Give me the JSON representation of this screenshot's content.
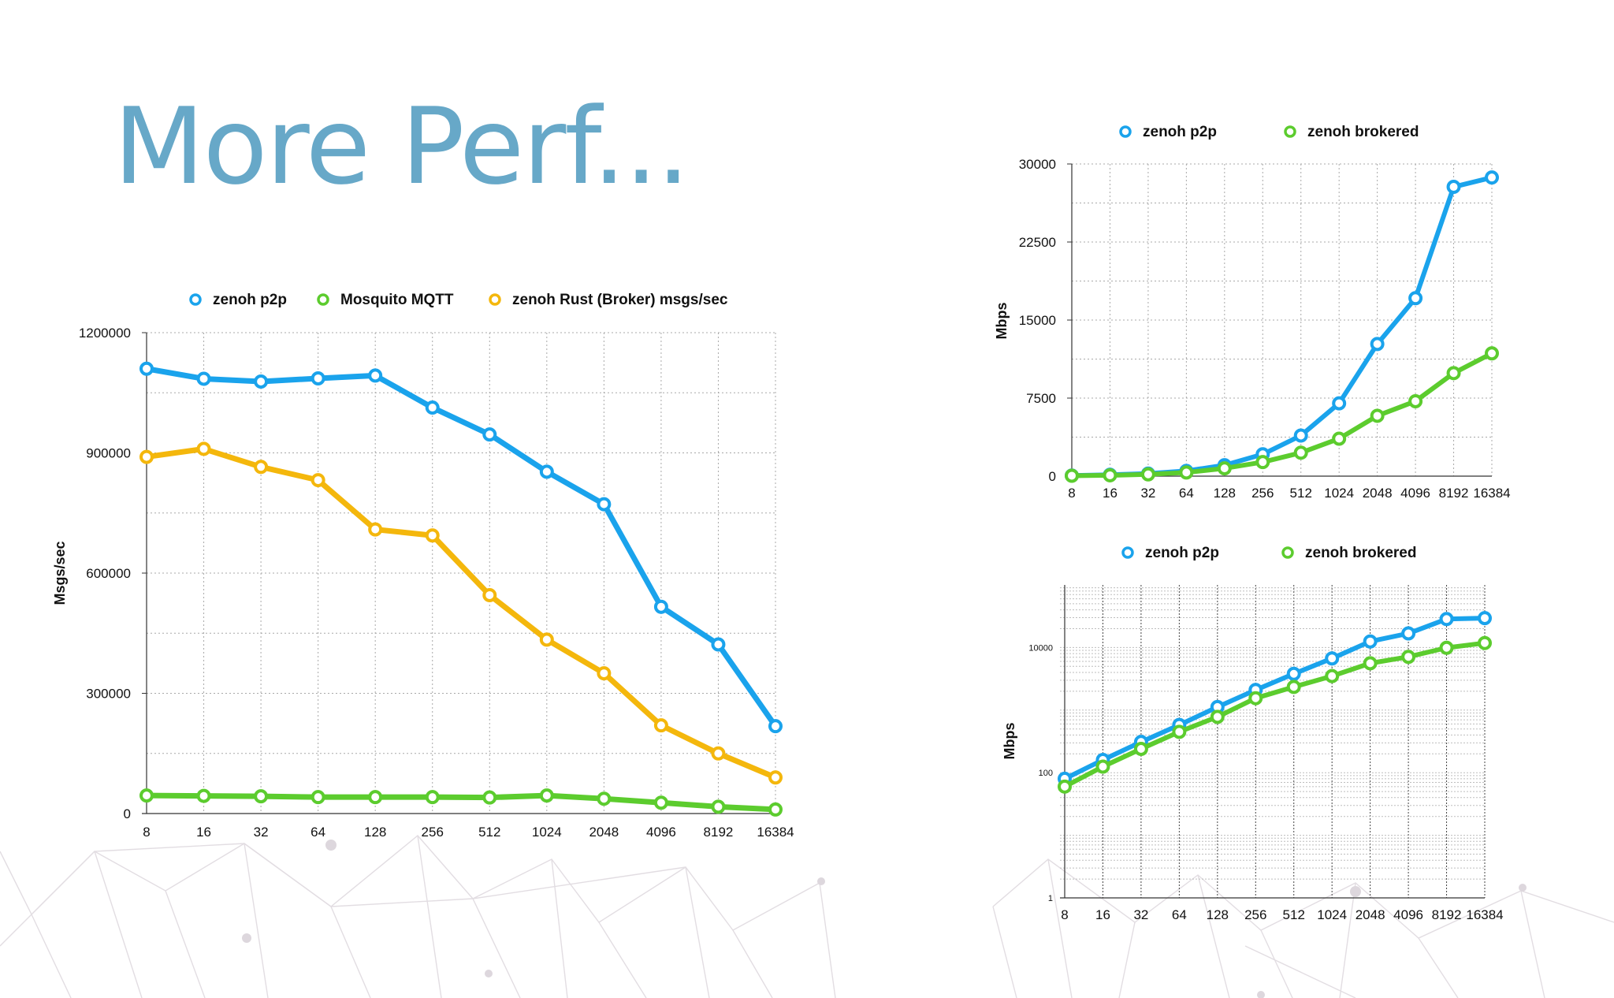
{
  "slide": {
    "title": "More Perf..."
  },
  "colors": {
    "blue": "#1aa3ec",
    "green": "#5ccc2e",
    "orange": "#f4b70c",
    "title": "#67a8c8",
    "grid": "#9a9a9a"
  },
  "chart_data": [
    {
      "type": "line",
      "categories": [
        "8",
        "16",
        "32",
        "64",
        "128",
        "256",
        "512",
        "1024",
        "2048",
        "4096",
        "8192",
        "16384"
      ],
      "series": [
        {
          "name": "zenoh p2p",
          "color": "#1aa3ec",
          "values": [
            1110000,
            1085000,
            1078000,
            1086000,
            1093000,
            1013000,
            946000,
            853000,
            772000,
            516000,
            422000,
            218000
          ]
        },
        {
          "name": "Mosquito MQTT",
          "color": "#5ccc2e",
          "values": [
            45000,
            44000,
            43000,
            41000,
            41000,
            41000,
            40000,
            45000,
            37000,
            27000,
            17000,
            10000
          ]
        },
        {
          "name": "zenoh Rust (Broker) msgs/sec",
          "color": "#f4b70c",
          "values": [
            890000,
            910000,
            865000,
            832000,
            709000,
            694000,
            545000,
            434000,
            350000,
            220000,
            150000,
            90000
          ]
        }
      ],
      "ylabel": "Msgs/sec",
      "xlabel": "",
      "ylim": [
        0,
        1200000
      ],
      "yticks": [
        "0",
        "300000",
        "600000",
        "900000",
        "1200000"
      ],
      "grid": true,
      "legend": "top"
    },
    {
      "type": "line",
      "categories": [
        "8",
        "16",
        "32",
        "64",
        "128",
        "256",
        "512",
        "1024",
        "2048",
        "4096",
        "8192",
        "16384"
      ],
      "series": [
        {
          "name": "zenoh p2p",
          "color": "#1aa3ec",
          "values": [
            60,
            130,
            250,
            500,
            1050,
            2100,
            3900,
            7000,
            12700,
            17100,
            27800,
            28700
          ]
        },
        {
          "name": "zenoh brokered",
          "color": "#5ccc2e",
          "values": [
            40,
            80,
            170,
            350,
            750,
            1350,
            2250,
            3600,
            5800,
            7200,
            9900,
            11800
          ]
        }
      ],
      "ylabel": "Mbps",
      "xlabel": "",
      "ylim": [
        0,
        30000
      ],
      "yticks": [
        "0",
        "7500",
        "15000",
        "22500",
        "30000"
      ],
      "grid": true,
      "legend": "top"
    },
    {
      "type": "line",
      "scale": "log",
      "categories": [
        "8",
        "16",
        "32",
        "64",
        "128",
        "256",
        "512",
        "1024",
        "2048",
        "4096",
        "8192",
        "16384"
      ],
      "series": [
        {
          "name": "zenoh p2p",
          "color": "#1aa3ec",
          "values": [
            80,
            160,
            310,
            580,
            1120,
            2100,
            3800,
            6700,
            12500,
            16800,
            28500,
            29500
          ]
        },
        {
          "name": "zenoh brokered",
          "color": "#5ccc2e",
          "values": [
            60,
            125,
            240,
            450,
            780,
            1550,
            2350,
            3500,
            5600,
            7100,
            9900,
            11800
          ]
        }
      ],
      "ylabel": "Mbps",
      "xlabel": "",
      "ylim": [
        1,
        100000
      ],
      "yticks": [
        "1",
        "100",
        "10000"
      ],
      "grid": true,
      "legend": "top"
    }
  ]
}
